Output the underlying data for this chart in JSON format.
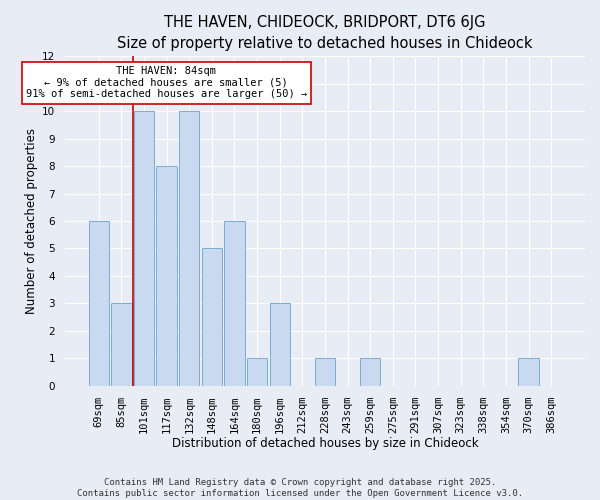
{
  "title_line1": "THE HAVEN, CHIDEOCK, BRIDPORT, DT6 6JG",
  "title_line2": "Size of property relative to detached houses in Chideock",
  "xlabel": "Distribution of detached houses by size in Chideock",
  "ylabel": "Number of detached properties",
  "categories": [
    "69sqm",
    "85sqm",
    "101sqm",
    "117sqm",
    "132sqm",
    "148sqm",
    "164sqm",
    "180sqm",
    "196sqm",
    "212sqm",
    "228sqm",
    "243sqm",
    "259sqm",
    "275sqm",
    "291sqm",
    "307sqm",
    "323sqm",
    "338sqm",
    "354sqm",
    "370sqm",
    "386sqm"
  ],
  "values": [
    6,
    3,
    10,
    8,
    10,
    5,
    6,
    1,
    3,
    0,
    1,
    0,
    1,
    0,
    0,
    0,
    0,
    0,
    0,
    1,
    0
  ],
  "bar_color": "#c9d9f0",
  "bar_edge_color": "#7aadd4",
  "background_color": "#e8ecf4",
  "grid_color": "#ffffff",
  "annotation_text": "THE HAVEN: 84sqm\n← 9% of detached houses are smaller (5)\n91% of semi-detached houses are larger (50) →",
  "annotation_box_color": "#ffffff",
  "annotation_box_edge_color": "#cc0000",
  "vline_x": 1.5,
  "vline_color": "#cc0000",
  "ylim": [
    0,
    12
  ],
  "yticks": [
    0,
    1,
    2,
    3,
    4,
    5,
    6,
    7,
    8,
    9,
    10,
    11,
    12
  ],
  "footnote": "Contains HM Land Registry data © Crown copyright and database right 2025.\nContains public sector information licensed under the Open Government Licence v3.0.",
  "title_fontsize": 10.5,
  "subtitle_fontsize": 9.5,
  "axis_label_fontsize": 8.5,
  "tick_fontsize": 7.5,
  "annotation_fontsize": 7.5,
  "footnote_fontsize": 6.5
}
